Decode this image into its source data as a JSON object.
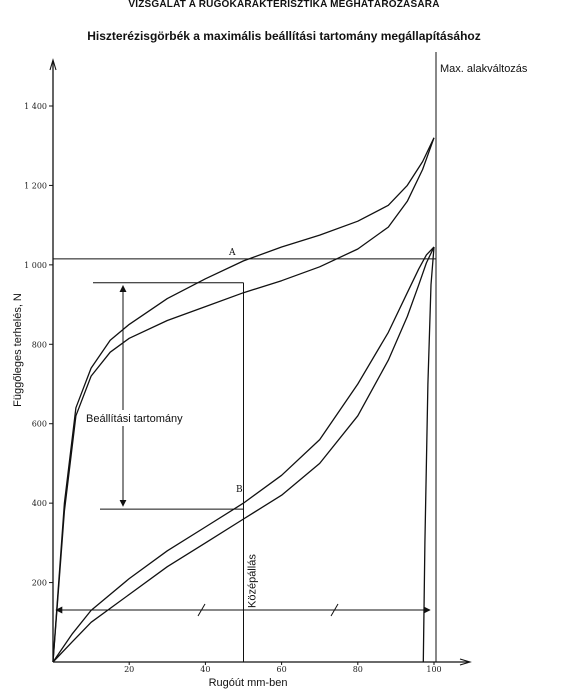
{
  "header": {
    "title": "VIZSGÁLAT A RUGÓKARAKTERISZTIKA MEGHATÁROZÁSÁRA",
    "subtitle": "Hiszterézisgörbék a maximális beállítási tartomány megállapításához"
  },
  "chart_data": {
    "type": "line",
    "xlabel": "Rugóút mm-ben",
    "ylabel": "Függőleges terhelés, N",
    "xlim": [
      0,
      100
    ],
    "ylim": [
      0,
      1500
    ],
    "x_ticks": [
      "20",
      "40",
      "60",
      "80",
      "100"
    ],
    "y_ticks": [
      "200",
      "400",
      "600",
      "800",
      "1 000",
      "1 200",
      "1 400"
    ],
    "grid": false,
    "series": [
      {
        "x": [
          0,
          3,
          6,
          10,
          15,
          20,
          30,
          40,
          50,
          60,
          70,
          80,
          88,
          93,
          97,
          100
        ],
        "y": [
          0,
          400,
          640,
          740,
          810,
          850,
          915,
          965,
          1010,
          1045,
          1075,
          1110,
          1150,
          1200,
          1260,
          1320
        ]
      },
      {
        "x": [
          0,
          3,
          6,
          10,
          15,
          20,
          30,
          40,
          50,
          60,
          70,
          80,
          88,
          93,
          97,
          100
        ],
        "y": [
          0,
          380,
          620,
          720,
          780,
          815,
          860,
          895,
          930,
          960,
          995,
          1040,
          1095,
          1160,
          1240,
          1320
        ]
      },
      {
        "x": [
          0,
          5,
          10,
          20,
          30,
          40,
          50,
          60,
          70,
          80,
          88,
          93,
          96,
          98,
          100
        ],
        "y": [
          0,
          70,
          130,
          210,
          280,
          340,
          400,
          470,
          560,
          700,
          830,
          930,
          990,
          1025,
          1045
        ]
      },
      {
        "x": [
          0,
          5,
          10,
          20,
          30,
          40,
          50,
          60,
          70,
          80,
          88,
          93,
          96,
          98,
          100
        ],
        "y": [
          0,
          50,
          100,
          170,
          240,
          300,
          360,
          420,
          500,
          620,
          760,
          870,
          950,
          1005,
          1045
        ]
      },
      {
        "x": [
          100,
          99.2,
          98.4,
          97.6,
          97.2
        ],
        "y": [
          1045,
          950,
          700,
          300,
          0
        ]
      }
    ],
    "annotations": {
      "max_label": "Max. alakváltozás",
      "range_label": "Beállítási tartomány",
      "mid_label": "Középállás",
      "point_a": "A",
      "point_b": "B",
      "max_x": 100,
      "mid_x": 50,
      "ref_y": 1015,
      "range_y": [
        955,
        385
      ]
    }
  }
}
